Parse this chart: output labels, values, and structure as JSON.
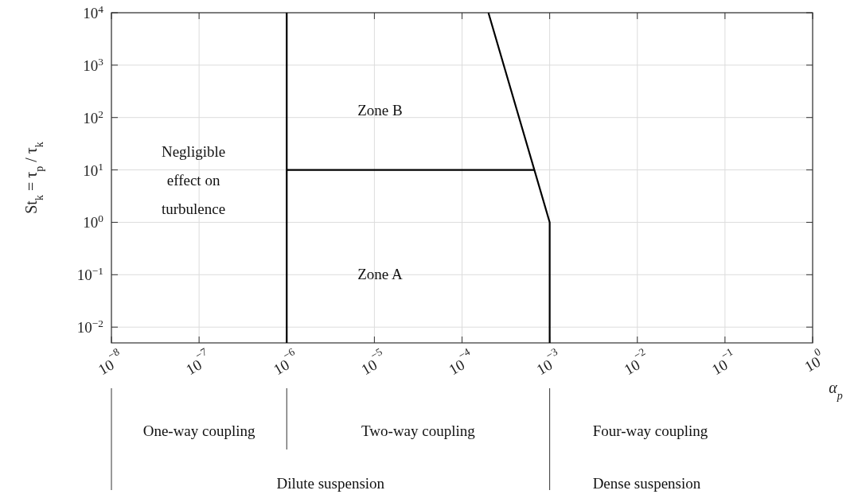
{
  "chart_data": {
    "type": "line",
    "xlabel": "α$_{p}$",
    "ylabel": "St$_{k}$ = τ$_{p}$ / τ$_{k}$",
    "log": "xy",
    "grid": true,
    "line_style": "solid",
    "xlim": [
      1e-08,
      1
    ],
    "ylim": [
      0.005,
      10000
    ],
    "xticks": [
      {
        "value": 1e-08,
        "label": "10$^{−8}$"
      },
      {
        "value": 1e-07,
        "label": "10$^{−7}$"
      },
      {
        "value": 1e-06,
        "label": "10$^{−6}$"
      },
      {
        "value": 1e-05,
        "label": "10$^{−5}$"
      },
      {
        "value": 0.0001,
        "label": "10$^{−4}$"
      },
      {
        "value": 0.001,
        "label": "10$^{−3}$"
      },
      {
        "value": 0.01,
        "label": "10$^{−2}$"
      },
      {
        "value": 0.1,
        "label": "10$^{−1}$"
      },
      {
        "value": 1,
        "label": "10$^{0}$"
      }
    ],
    "yticks": [
      {
        "value": 0.01,
        "label": "10$^{−2}$"
      },
      {
        "value": 0.1,
        "label": "10$^{−1}$"
      },
      {
        "value": 1,
        "label": "10$^{0}$"
      },
      {
        "value": 10,
        "label": "10$^{1}$"
      },
      {
        "value": 100,
        "label": "10$^{2}$"
      },
      {
        "value": 1000,
        "label": "10$^{3}$"
      },
      {
        "value": 10000,
        "label": "10$^{4}$"
      }
    ],
    "series": [
      {
        "color": "#000000",
        "x": [
          1e-06,
          1e-06
        ],
        "values": [
          0.005,
          10000
        ]
      },
      {
        "color": "#000000",
        "x": [
          1e-06,
          0.00067
        ],
        "values": [
          10,
          10
        ]
      },
      {
        "color": "#000000",
        "x": [
          0.0002,
          0.001,
          0.001
        ],
        "values": [
          10000,
          1,
          0.005
        ]
      }
    ],
    "annotations": [
      "Zone B",
      "Zone A",
      "Negligible effect on turbulence",
      "One-way coupling",
      "Two-way coupling",
      "Four-way coupling",
      "Dilute suspension",
      "Dense suspension"
    ]
  }
}
